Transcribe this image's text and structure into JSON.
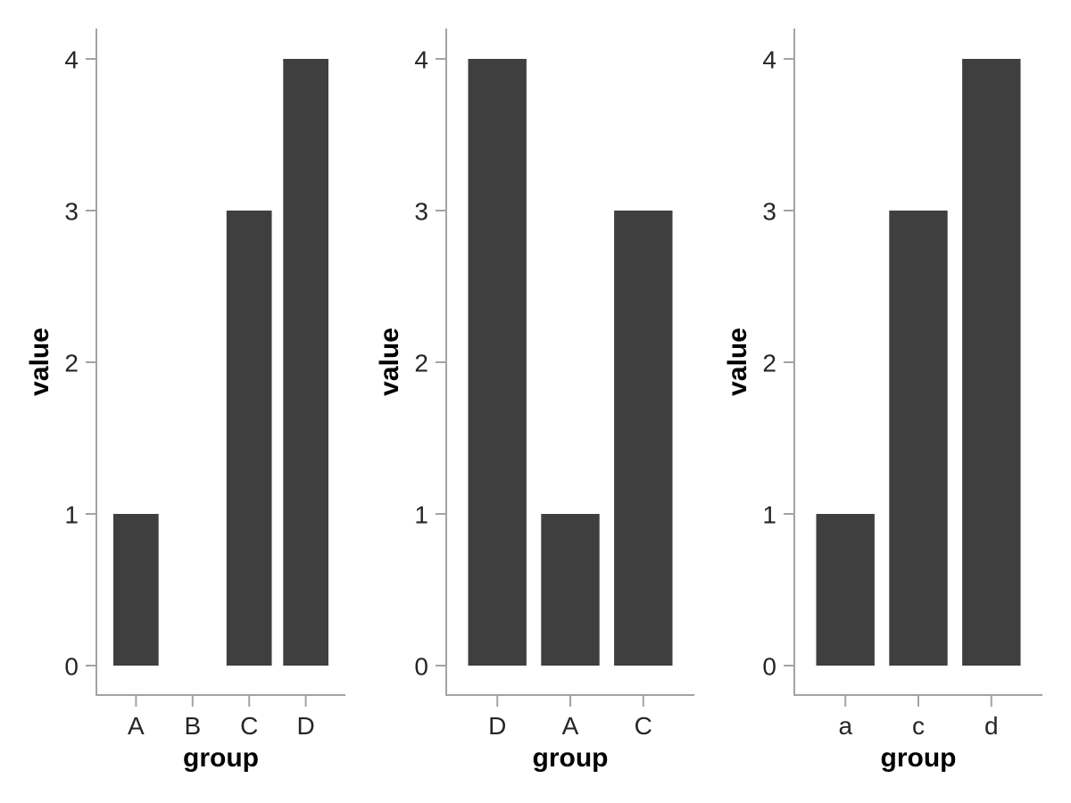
{
  "figure": {
    "background": "#FFFFFF",
    "description": "Three side-by-side bar charts sharing the same axes style"
  },
  "colors": {
    "bar_fill": "#3F3F3F",
    "axis_line": "#A3A3A3",
    "tick_text": "#262626",
    "title_text": "#000000"
  },
  "chart_data": [
    {
      "type": "bar",
      "title": "",
      "categories": [
        "A",
        "B",
        "C",
        "D"
      ],
      "values": [
        1,
        0,
        3,
        4
      ],
      "xlabel": "group",
      "ylabel": "value",
      "ylim": [
        0,
        4
      ],
      "yticks": [
        0,
        1,
        2,
        3,
        4
      ],
      "grid": false,
      "legend": false
    },
    {
      "type": "bar",
      "title": "",
      "categories": [
        "D",
        "A",
        "C"
      ],
      "values": [
        4,
        1,
        3
      ],
      "xlabel": "group",
      "ylabel": "value",
      "ylim": [
        0,
        4
      ],
      "yticks": [
        0,
        1,
        2,
        3,
        4
      ],
      "grid": false,
      "legend": false
    },
    {
      "type": "bar",
      "title": "",
      "categories": [
        "a",
        "c",
        "d"
      ],
      "values": [
        1,
        3,
        4
      ],
      "xlabel": "group",
      "ylabel": "value",
      "ylim": [
        0,
        4
      ],
      "yticks": [
        0,
        1,
        2,
        3,
        4
      ],
      "grid": false,
      "legend": false
    }
  ]
}
